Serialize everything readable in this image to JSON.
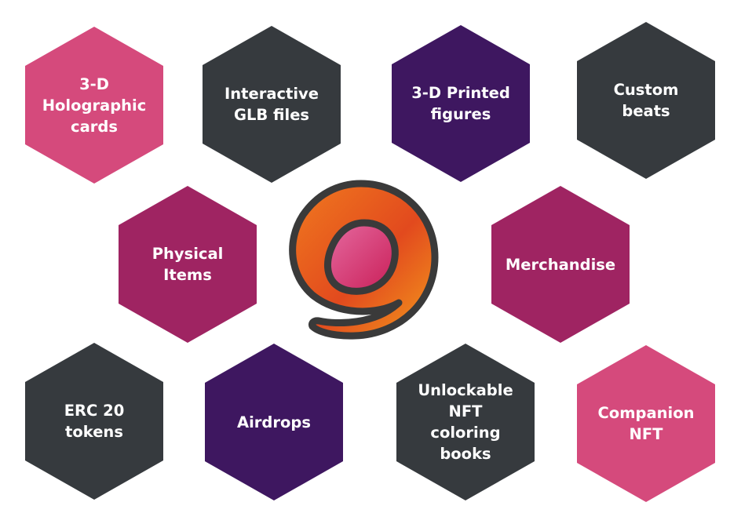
{
  "colors": {
    "pink": "#d54a7c",
    "dark": "#363a3e",
    "purple": "#3e1760",
    "magenta": "#9f2462",
    "logo_ring": "#3b3b3b",
    "logo_orange": "#ef6a1f",
    "logo_inner": "#d93c72"
  },
  "hexagons": [
    {
      "label": "3-D\nHolographic\ncards",
      "color": "pink"
    },
    {
      "label": "Interactive\nGLB files",
      "color": "dark"
    },
    {
      "label": "3-D Printed\nfigures",
      "color": "purple"
    },
    {
      "label": "Custom\nbeats",
      "color": "dark"
    },
    {
      "label": "Physical\nItems",
      "color": "magenta"
    },
    {
      "label": "Merchandise",
      "color": "magenta"
    },
    {
      "label": "ERC 20\ntokens",
      "color": "dark"
    },
    {
      "label": "Airdrops",
      "color": "purple"
    },
    {
      "label": "Unlockable\nNFT\ncoloring\nbooks",
      "color": "dark"
    },
    {
      "label": "Companion\nNFT",
      "color": "pink"
    }
  ],
  "logo": {
    "icon": "spiral-logo-icon"
  }
}
